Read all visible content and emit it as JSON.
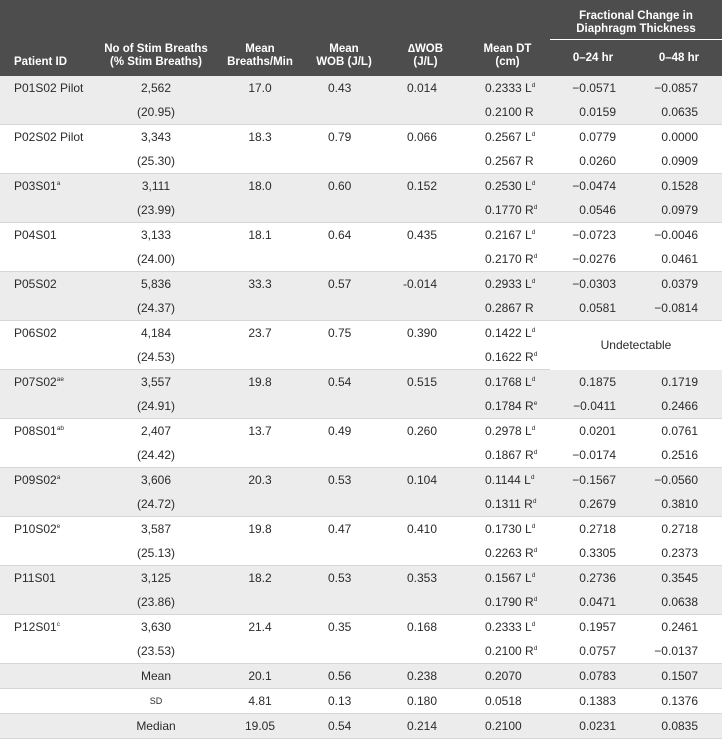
{
  "headers": {
    "patient_id": "Patient ID",
    "stim_breaths_l1": "No of Stim Breaths",
    "stim_breaths_l2": "(% Stim Breaths)",
    "mean_bpm_l1": "Mean",
    "mean_bpm_l2": "Breaths/Min",
    "mean_wob_l1": "Mean",
    "mean_wob_l2": "WOB (J/L)",
    "dwob_l1": "∆WOB",
    "dwob_l2": "(J/L)",
    "mean_dt_l1": "Mean DT",
    "mean_dt_l2": "(cm)",
    "frac_l1": "Fractional Change in",
    "frac_l2": "Diaphragm Thickness",
    "frac_24": "0–24 hr",
    "frac_48": "0–48 hr"
  },
  "patients": [
    {
      "id": "P01S02 Pilot",
      "sup": "",
      "breaths": "2,562",
      "pct": "(20.95)",
      "bpm": "17.0",
      "wob": "0.43",
      "dwob": "0.014",
      "dt1": "0.2333",
      "dt1_side": "L",
      "dt1_sup": "d",
      "dt2": "0.2100",
      "dt2_side": "R",
      "dt2_sup": "",
      "f24a": "−0.0571",
      "f48a": "−0.0857",
      "f24b": "0.0159",
      "f48b": "0.0635"
    },
    {
      "id": "P02S02 Pilot",
      "sup": "",
      "breaths": "3,343",
      "pct": "(25.30)",
      "bpm": "18.3",
      "wob": "0.79",
      "dwob": "0.066",
      "dt1": "0.2567",
      "dt1_side": "L",
      "dt1_sup": "d",
      "dt2": "0.2567",
      "dt2_side": "R",
      "dt2_sup": "",
      "f24a": "0.0779",
      "f48a": "0.0000",
      "f24b": "0.0260",
      "f48b": "0.0909"
    },
    {
      "id": "P03S01",
      "sup": "a",
      "breaths": "3,111",
      "pct": "(23.99)",
      "bpm": "18.0",
      "wob": "0.60",
      "dwob": "0.152",
      "dt1": "0.2530",
      "dt1_side": "L",
      "dt1_sup": "d",
      "dt2": "0.1770",
      "dt2_side": "R",
      "dt2_sup": "d",
      "f24a": "−0.0474",
      "f48a": "0.1528",
      "f24b": "0.0546",
      "f48b": "0.0979"
    },
    {
      "id": "P04S01",
      "sup": "",
      "breaths": "3,133",
      "pct": "(24.00)",
      "bpm": "18.1",
      "wob": "0.64",
      "dwob": "0.435",
      "dt1": "0.2167",
      "dt1_side": "L",
      "dt1_sup": "d",
      "dt2": "0.2170",
      "dt2_side": "R",
      "dt2_sup": "d",
      "f24a": "−0.0723",
      "f48a": "−0.0046",
      "f24b": "−0.0276",
      "f48b": "0.0461"
    },
    {
      "id": "P05S02",
      "sup": "",
      "breaths": "5,836",
      "pct": "(24.37)",
      "bpm": "33.3",
      "wob": "0.57",
      "dwob": "-0.014",
      "dt1": "0.2933",
      "dt1_side": "L",
      "dt1_sup": "d",
      "dt2": "0.2867",
      "dt2_side": "R",
      "dt2_sup": "",
      "f24a": "−0.0303",
      "f48a": "0.0379",
      "f24b": "0.0581",
      "f48b": "−0.0814"
    },
    {
      "id": "P06S02",
      "sup": "",
      "breaths": "4,184",
      "pct": "(24.53)",
      "bpm": "23.7",
      "wob": "0.75",
      "dwob": "0.390",
      "dt1": "0.1422",
      "dt1_side": "L",
      "dt1_sup": "d",
      "dt2": "0.1622",
      "dt2_side": "R",
      "dt2_sup": "d",
      "undetectable": "Undetectable"
    },
    {
      "id": "P07S02",
      "sup": "ae",
      "breaths": "3,557",
      "pct": "(24.91)",
      "bpm": "19.8",
      "wob": "0.54",
      "dwob": "0.515",
      "dt1": "0.1768",
      "dt1_side": "L",
      "dt1_sup": "d",
      "dt2": "0.1784",
      "dt2_side": "R",
      "dt2_sup": "e",
      "f24a": "0.1875",
      "f48a": "0.1719",
      "f24b": "−0.0411",
      "f48b": "0.2466"
    },
    {
      "id": "P08S01",
      "sup": "ab",
      "breaths": "2,407",
      "pct": "(24.42)",
      "bpm": "13.7",
      "wob": "0.49",
      "dwob": "0.260",
      "dt1": "0.2978",
      "dt1_side": "L",
      "dt1_sup": "d",
      "dt2": "0.1867",
      "dt2_side": "R",
      "dt2_sup": "d",
      "f24a": "0.0201",
      "f48a": "0.0761",
      "f24b": "−0.0174",
      "f48b": "0.2516"
    },
    {
      "id": "P09S02",
      "sup": "a",
      "breaths": "3,606",
      "pct": "(24.72)",
      "bpm": "20.3",
      "wob": "0.53",
      "dwob": "0.104",
      "dt1": "0.1144",
      "dt1_side": "L",
      "dt1_sup": "d",
      "dt2": "0.1311",
      "dt2_side": "R",
      "dt2_sup": "d",
      "f24a": "−0.1567",
      "f48a": "−0.0560",
      "f24b": "0.2679",
      "f48b": "0.3810"
    },
    {
      "id": "P10S02",
      "sup": "e",
      "breaths": "3,587",
      "pct": "(25.13)",
      "bpm": "19.8",
      "wob": "0.47",
      "dwob": "0.410",
      "dt1": "0.1730",
      "dt1_side": "L",
      "dt1_sup": "d",
      "dt2": "0.2263",
      "dt2_side": "R",
      "dt2_sup": "d",
      "f24a": "0.2718",
      "f48a": "0.2718",
      "f24b": "0.3305",
      "f48b": "0.2373"
    },
    {
      "id": "P11S01",
      "sup": "",
      "breaths": "3,125",
      "pct": "(23.86)",
      "bpm": "18.2",
      "wob": "0.53",
      "dwob": "0.353",
      "dt1": "0.1567",
      "dt1_side": "L",
      "dt1_sup": "d",
      "dt2": "0.1790",
      "dt2_side": "R",
      "dt2_sup": "d",
      "f24a": "0.2736",
      "f48a": "0.3545",
      "f24b": "0.0471",
      "f48b": "0.0638"
    },
    {
      "id": "P12S01",
      "sup": "c",
      "breaths": "3,630",
      "pct": "(23.53)",
      "bpm": "21.4",
      "wob": "0.35",
      "dwob": "0.168",
      "dt1": "0.2333",
      "dt1_side": "L",
      "dt1_sup": "d",
      "dt2": "0.2100",
      "dt2_side": "R",
      "dt2_sup": "d",
      "f24a": "0.1957",
      "f48a": "0.2461",
      "f24b": "0.0757",
      "f48b": "−0.0137"
    }
  ],
  "stats": [
    {
      "label": "Mean",
      "bpm": "20.1",
      "wob": "0.56",
      "dwob": "0.238",
      "dt": "0.2070",
      "f24": "0.0783",
      "f48": "0.1507"
    },
    {
      "label": "SD",
      "bpm": "4.81",
      "wob": "0.13",
      "dwob": "0.180",
      "dt": "0.0518",
      "f24": "0.1383",
      "f48": "0.1376"
    },
    {
      "label": "Median",
      "bpm": "19.05",
      "wob": "0.54",
      "dwob": "0.214",
      "dt": "0.2100",
      "f24": "0.0231",
      "f48": "0.0835"
    }
  ]
}
